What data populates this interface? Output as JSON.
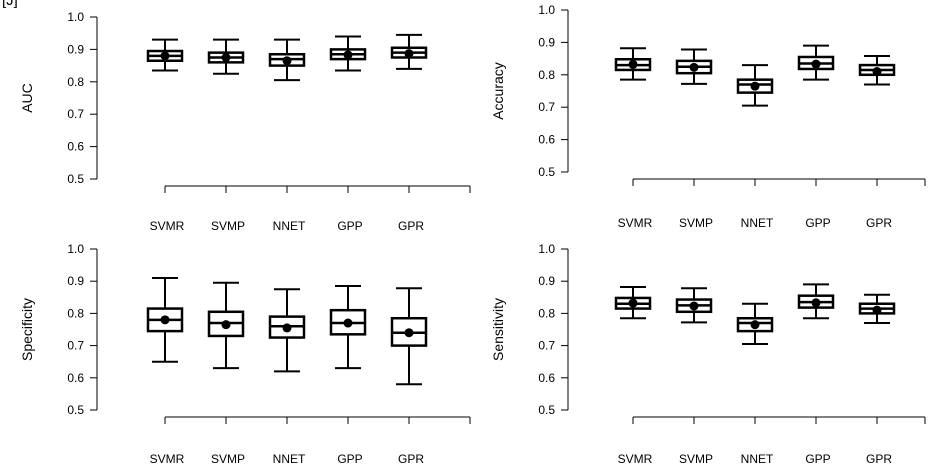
{
  "figure": {
    "panel_label": "[J]"
  },
  "chart_data": [
    {
      "type": "box",
      "ylabel": "AUC",
      "ylim": [
        0.5,
        1.0
      ],
      "yticks": [
        "0.5",
        "0.6",
        "0.7",
        "0.8",
        "0.9",
        "1.0"
      ],
      "categories": [
        "SVMR",
        "SVMP",
        "NNET",
        "GPP",
        "GPR"
      ],
      "boxes": [
        {
          "whisker_low": 0.835,
          "q1": 0.865,
          "median": 0.88,
          "q3": 0.895,
          "whisker_high": 0.93,
          "mean": 0.88
        },
        {
          "whisker_low": 0.825,
          "q1": 0.86,
          "median": 0.875,
          "q3": 0.89,
          "whisker_high": 0.93,
          "mean": 0.875
        },
        {
          "whisker_low": 0.805,
          "q1": 0.85,
          "median": 0.87,
          "q3": 0.885,
          "whisker_high": 0.93,
          "mean": 0.865
        },
        {
          "whisker_low": 0.835,
          "q1": 0.87,
          "median": 0.885,
          "q3": 0.9,
          "whisker_high": 0.94,
          "mean": 0.883
        },
        {
          "whisker_low": 0.84,
          "q1": 0.875,
          "median": 0.89,
          "q3": 0.905,
          "whisker_high": 0.945,
          "mean": 0.887
        }
      ]
    },
    {
      "type": "box",
      "ylabel": "Accuracy",
      "ylim": [
        0.5,
        1.0
      ],
      "yticks": [
        "0.5",
        "0.6",
        "0.7",
        "0.8",
        "0.9",
        "1.0"
      ],
      "categories": [
        "SVMR",
        "SVMP",
        "NNET",
        "GPP",
        "GPR"
      ],
      "boxes": [
        {
          "whisker_low": 0.785,
          "q1": 0.815,
          "median": 0.83,
          "q3": 0.848,
          "whisker_high": 0.882,
          "mean": 0.832
        },
        {
          "whisker_low": 0.772,
          "q1": 0.805,
          "median": 0.825,
          "q3": 0.843,
          "whisker_high": 0.878,
          "mean": 0.823
        },
        {
          "whisker_low": 0.705,
          "q1": 0.745,
          "median": 0.77,
          "q3": 0.785,
          "whisker_high": 0.83,
          "mean": 0.765
        },
        {
          "whisker_low": 0.785,
          "q1": 0.818,
          "median": 0.835,
          "q3": 0.855,
          "whisker_high": 0.89,
          "mean": 0.833
        },
        {
          "whisker_low": 0.77,
          "q1": 0.8,
          "median": 0.815,
          "q3": 0.83,
          "whisker_high": 0.858,
          "mean": 0.81
        }
      ]
    },
    {
      "type": "box",
      "ylabel": "Specificity",
      "ylim": [
        0.5,
        1.0
      ],
      "yticks": [
        "0.5",
        "0.6",
        "0.7",
        "0.8",
        "0.9",
        "1.0"
      ],
      "categories": [
        "SVMR",
        "SVMP",
        "NNET",
        "GPP",
        "GPR"
      ],
      "boxes": [
        {
          "whisker_low": 0.65,
          "q1": 0.745,
          "median": 0.78,
          "q3": 0.815,
          "whisker_high": 0.91,
          "mean": 0.78
        },
        {
          "whisker_low": 0.63,
          "q1": 0.73,
          "median": 0.77,
          "q3": 0.805,
          "whisker_high": 0.895,
          "mean": 0.765
        },
        {
          "whisker_low": 0.62,
          "q1": 0.725,
          "median": 0.76,
          "q3": 0.79,
          "whisker_high": 0.875,
          "mean": 0.755
        },
        {
          "whisker_low": 0.63,
          "q1": 0.735,
          "median": 0.77,
          "q3": 0.81,
          "whisker_high": 0.885,
          "mean": 0.77
        },
        {
          "whisker_low": 0.58,
          "q1": 0.7,
          "median": 0.74,
          "q3": 0.785,
          "whisker_high": 0.878,
          "mean": 0.74
        }
      ]
    },
    {
      "type": "box",
      "ylabel": "Sensitivity",
      "ylim": [
        0.5,
        1.0
      ],
      "yticks": [
        "0.5",
        "0.6",
        "0.7",
        "0.8",
        "0.9",
        "1.0"
      ],
      "categories": [
        "SVMR",
        "SVMP",
        "NNET",
        "GPP",
        "GPR"
      ],
      "boxes": [
        {
          "whisker_low": 0.785,
          "q1": 0.815,
          "median": 0.83,
          "q3": 0.848,
          "whisker_high": 0.882,
          "mean": 0.832
        },
        {
          "whisker_low": 0.772,
          "q1": 0.805,
          "median": 0.825,
          "q3": 0.843,
          "whisker_high": 0.878,
          "mean": 0.823
        },
        {
          "whisker_low": 0.705,
          "q1": 0.745,
          "median": 0.77,
          "q3": 0.785,
          "whisker_high": 0.83,
          "mean": 0.765
        },
        {
          "whisker_low": 0.785,
          "q1": 0.818,
          "median": 0.835,
          "q3": 0.855,
          "whisker_high": 0.89,
          "mean": 0.833
        },
        {
          "whisker_low": 0.77,
          "q1": 0.8,
          "median": 0.815,
          "q3": 0.83,
          "whisker_high": 0.858,
          "mean": 0.81
        }
      ]
    }
  ]
}
